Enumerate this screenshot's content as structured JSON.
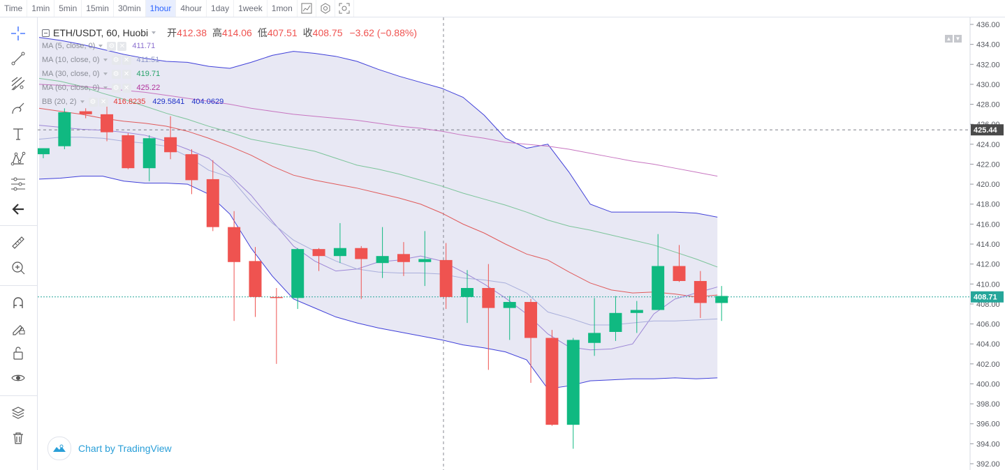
{
  "timeframes": [
    {
      "label": "Time",
      "active": false
    },
    {
      "label": "1min",
      "active": false
    },
    {
      "label": "5min",
      "active": false
    },
    {
      "label": "15min",
      "active": false
    },
    {
      "label": "30min",
      "active": false
    },
    {
      "label": "1hour",
      "active": true
    },
    {
      "label": "4hour",
      "active": false
    },
    {
      "label": "1day",
      "active": false
    },
    {
      "label": "1week",
      "active": false
    },
    {
      "label": "1mon",
      "active": false
    }
  ],
  "topbar_icons": [
    "indicators-icon",
    "settings-icon",
    "screenshot-icon"
  ],
  "tools": [
    "crosshair-icon",
    "trend-line-icon",
    "fib-icon",
    "brush-icon",
    "text-icon",
    "pattern-icon",
    "measure-icon",
    "back-arrow-icon",
    "ruler-icon",
    "zoom-in-icon",
    "magnet-icon",
    "lock-drawing-icon",
    "unlock-icon",
    "eye-icon",
    "layers-icon",
    "trash-icon"
  ],
  "legend": {
    "symbol": "ETH/USDT, 60, Huobi",
    "open_label": "开",
    "open": "412.38",
    "high_label": "高",
    "high": "414.06",
    "low_label": "低",
    "low": "407.51",
    "close_label": "收",
    "close": "408.75",
    "change": "−3.62 (−0.88%)",
    "indicators": [
      {
        "label": "MA (5, close, 0)",
        "values": [
          "411.71"
        ],
        "colors": [
          "#8b6fcf"
        ]
      },
      {
        "label": "MA (10, close, 0)",
        "values": [
          "411.51"
        ],
        "colors": [
          "#8f98c9"
        ]
      },
      {
        "label": "MA (30, close, 0)",
        "values": [
          "419.71"
        ],
        "colors": [
          "#26a269"
        ]
      },
      {
        "label": "MA (60, close, 0)",
        "values": [
          "425.22"
        ],
        "colors": [
          "#b0309b"
        ]
      },
      {
        "label": "BB (20, 2)",
        "values": [
          "416.8235",
          "429.5841",
          "404.0629"
        ],
        "colors": [
          "#e53935",
          "#1d30c8",
          "#1d30c8"
        ]
      }
    ]
  },
  "brand_text": "Chart by TradingView",
  "colors": {
    "up": "#26a69a",
    "up_body": "#10b981",
    "down": "#ef5350",
    "bb_fill": "#e4e4f2",
    "bb_line": "#3f3fd9",
    "ma5": "#9c86d6",
    "ma10": "#a8aedb",
    "ma30": "#7cc49a",
    "ma60": "#c774c0",
    "bb_mid": "#e05a5a"
  },
  "chart_data": {
    "type": "candlestick",
    "y_axis": {
      "min": 392,
      "max": 436,
      "ticks": [
        392,
        394,
        396,
        398,
        400,
        402,
        404,
        406,
        408,
        410,
        412,
        414,
        416,
        418,
        420,
        422,
        424,
        426,
        428,
        430,
        432,
        434,
        436
      ]
    },
    "price_labels": [
      {
        "value": 425.44,
        "text": "425.44",
        "style": "dark"
      },
      {
        "value": 408.71,
        "text": "408.71",
        "style": "teal"
      }
    ],
    "candles": [
      {
        "o": 423.0,
        "h": 423.6,
        "l": 422.6,
        "c": 423.6
      },
      {
        "o": 423.8,
        "h": 427.6,
        "l": 423.5,
        "c": 427.2
      },
      {
        "o": 427.3,
        "h": 427.6,
        "l": 426.6,
        "c": 427.0
      },
      {
        "o": 427.0,
        "h": 428.0,
        "l": 424.3,
        "c": 425.2
      },
      {
        "o": 424.9,
        "h": 425.1,
        "l": 421.5,
        "c": 421.6
      },
      {
        "o": 421.6,
        "h": 424.9,
        "l": 420.3,
        "c": 424.6
      },
      {
        "o": 424.7,
        "h": 426.8,
        "l": 422.5,
        "c": 423.2
      },
      {
        "o": 423.0,
        "h": 423.5,
        "l": 419.0,
        "c": 420.4
      },
      {
        "o": 420.5,
        "h": 422.4,
        "l": 415.3,
        "c": 415.7
      },
      {
        "o": 415.7,
        "h": 417.3,
        "l": 406.3,
        "c": 412.2
      },
      {
        "o": 412.3,
        "h": 413.7,
        "l": 406.7,
        "c": 408.7
      },
      {
        "o": 408.7,
        "h": 409.6,
        "l": 402.0,
        "c": 408.6
      },
      {
        "o": 408.6,
        "h": 413.6,
        "l": 407.5,
        "c": 413.5
      },
      {
        "o": 413.5,
        "h": 413.6,
        "l": 411.3,
        "c": 412.8
      },
      {
        "o": 412.8,
        "h": 416.1,
        "l": 412.1,
        "c": 413.6
      },
      {
        "o": 413.6,
        "h": 413.8,
        "l": 408.5,
        "c": 412.5
      },
      {
        "o": 412.1,
        "h": 415.7,
        "l": 410.6,
        "c": 412.8
      },
      {
        "o": 413.0,
        "h": 414.2,
        "l": 410.8,
        "c": 412.2
      },
      {
        "o": 412.2,
        "h": 415.3,
        "l": 409.8,
        "c": 412.5
      },
      {
        "o": 412.4,
        "h": 414.1,
        "l": 407.5,
        "c": 408.7
      },
      {
        "o": 408.7,
        "h": 411.4,
        "l": 406.1,
        "c": 409.6
      },
      {
        "o": 409.6,
        "h": 412.0,
        "l": 401.4,
        "c": 407.6
      },
      {
        "o": 407.6,
        "h": 408.8,
        "l": 404.4,
        "c": 408.2
      },
      {
        "o": 408.2,
        "h": 408.5,
        "l": 400.1,
        "c": 404.6
      },
      {
        "o": 404.6,
        "h": 405.4,
        "l": 395.8,
        "c": 395.9
      },
      {
        "o": 395.9,
        "h": 404.6,
        "l": 393.5,
        "c": 404.4
      },
      {
        "o": 404.1,
        "h": 408.6,
        "l": 402.8,
        "c": 405.1
      },
      {
        "o": 405.2,
        "h": 408.8,
        "l": 404.3,
        "c": 407.1
      },
      {
        "o": 407.1,
        "h": 408.3,
        "l": 405.1,
        "c": 407.4
      },
      {
        "o": 407.4,
        "h": 415.0,
        "l": 407.4,
        "c": 411.8
      },
      {
        "o": 411.8,
        "h": 413.9,
        "l": 410.2,
        "c": 410.3
      },
      {
        "o": 410.3,
        "h": 411.3,
        "l": 406.6,
        "c": 408.1
      },
      {
        "o": 408.1,
        "h": 409.8,
        "l": 406.3,
        "c": 408.8
      }
    ],
    "series": [
      {
        "name": "BB upper",
        "values": [
          434.7,
          434.4,
          434.0,
          433.5,
          433.0,
          432.6,
          432.3,
          432.2,
          431.8,
          431.6,
          432.2,
          432.9,
          433.3,
          433.1,
          432.8,
          432.3,
          431.5,
          430.8,
          430.2,
          429.6,
          428.7,
          426.9,
          424.6,
          423.6,
          424.0,
          421.2,
          418.0,
          417.2,
          417.2,
          417.2,
          417.2,
          417.1,
          416.7
        ]
      },
      {
        "name": "BB lower",
        "values": [
          420.5,
          420.6,
          420.8,
          420.8,
          420.3,
          420.1,
          420.1,
          420.0,
          419.0,
          417.0,
          413.6,
          410.8,
          408.5,
          407.6,
          406.7,
          406.1,
          405.6,
          405.2,
          404.8,
          404.4,
          403.9,
          403.6,
          403.2,
          402.4,
          399.5,
          399.8,
          400.3,
          400.4,
          400.5,
          400.5,
          400.6,
          400.5,
          400.6
        ]
      },
      {
        "name": "BB mid",
        "values": [
          427.6,
          427.3,
          427.0,
          426.6,
          426.3,
          426.1,
          425.8,
          425.3,
          424.6,
          423.8,
          422.9,
          421.8,
          420.9,
          420.4,
          420.0,
          419.6,
          419.1,
          418.6,
          418.0,
          417.1,
          416.0,
          415.1,
          414.0,
          413.0,
          412.4,
          411.2,
          410.1,
          409.4,
          409.1,
          409.2,
          409.0,
          408.7,
          408.9
        ]
      },
      {
        "name": "MA5",
        "values": [
          425.9,
          425.7,
          425.5,
          425.4,
          425.2,
          424.9,
          424.3,
          423.5,
          422.6,
          420.9,
          418.9,
          416.3,
          413.8,
          412.3,
          411.3,
          411.5,
          412.2,
          412.4,
          412.8,
          412.3,
          411.2,
          410.0,
          408.6,
          407.0,
          405.0,
          403.7,
          403.4,
          403.5,
          404.0,
          407.0,
          408.5,
          409.1,
          409.7
        ]
      },
      {
        "name": "MA10",
        "values": [
          424.5,
          424.7,
          424.7,
          424.6,
          424.3,
          424.1,
          423.8,
          422.8,
          421.4,
          420.7,
          418.2,
          416.1,
          414.4,
          413.3,
          412.3,
          411.5,
          411.2,
          411.1,
          411.1,
          411.0,
          410.6,
          410.4,
          410.1,
          409.1,
          407.2,
          406.6,
          405.9,
          405.9,
          406.1,
          406.3,
          406.3,
          406.4,
          406.5
        ]
      },
      {
        "name": "MA30",
        "values": [
          430.6,
          430.3,
          429.8,
          429.1,
          428.5,
          427.8,
          427.1,
          426.5,
          425.8,
          425.2,
          424.5,
          424.1,
          423.7,
          423.3,
          422.6,
          421.9,
          421.5,
          421.0,
          420.4,
          419.8,
          419.1,
          418.5,
          417.9,
          417.2,
          416.4,
          415.8,
          415.4,
          414.9,
          414.4,
          413.9,
          413.2,
          412.5,
          411.7
        ]
      },
      {
        "name": "MA60",
        "values": [
          430.0,
          429.9,
          429.8,
          429.6,
          429.4,
          429.2,
          428.9,
          428.6,
          428.3,
          428.0,
          427.6,
          427.3,
          427.0,
          426.8,
          426.6,
          426.4,
          426.1,
          425.8,
          425.6,
          425.3,
          424.9,
          424.6,
          424.2,
          424.0,
          423.8,
          423.5,
          423.1,
          422.7,
          422.3,
          422.0,
          421.6,
          421.2,
          420.8
        ]
      }
    ],
    "crosshair": {
      "price": 425.44
    },
    "last_price": 408.71
  }
}
